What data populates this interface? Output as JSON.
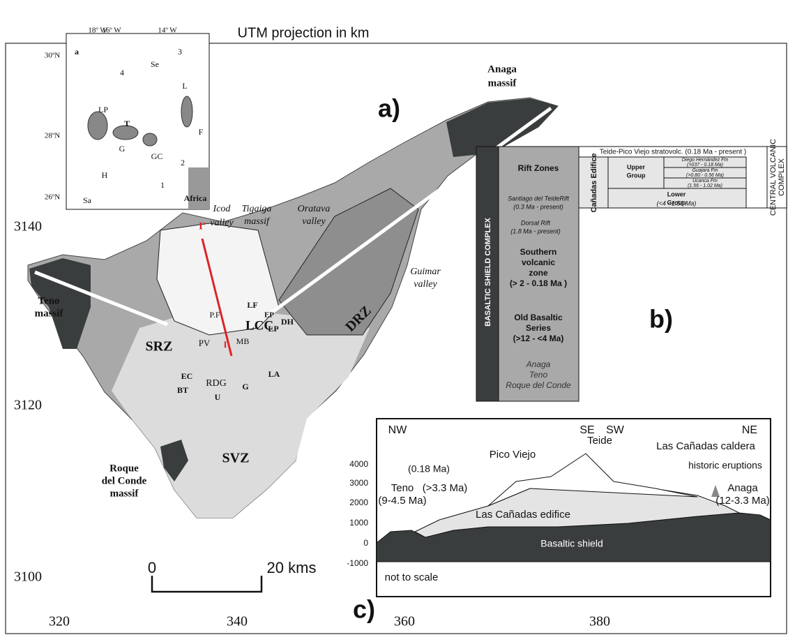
{
  "title": "UTM projection in km",
  "utm": {
    "northing": [
      "3140",
      "3120",
      "3100"
    ],
    "easting": [
      "320",
      "340",
      "360",
      "380"
    ]
  },
  "inset": {
    "panel": "a",
    "longitudes": [
      "18º W",
      "16º W",
      "14º W"
    ],
    "latitudes": [
      "30ºN",
      "28ºN",
      "26ºN"
    ],
    "labels": [
      "Se",
      "3",
      "4",
      "LP",
      "T",
      "L",
      "F",
      "G",
      "GC",
      "H",
      "2",
      "1",
      "Sa",
      "Africa"
    ]
  },
  "map": {
    "panel_label": "a)",
    "labels": [
      "Anaga",
      "massif",
      "Tigaiga",
      "massif",
      "Oratava",
      "valley",
      "Icod",
      "valley",
      "I'",
      "Guimar",
      "valley",
      "Teno",
      "massif",
      "LF",
      "EP",
      "DH",
      "LP",
      "LCC",
      "P.F",
      "MB",
      "PV",
      "I",
      "SRZ",
      "DRZ",
      "EC",
      "BT",
      "RDG",
      "U",
      "G",
      "LA",
      "SVZ",
      "Roque",
      "del Conde",
      "massif"
    ],
    "scale_bar": {
      "start": "0",
      "end": "20 kms"
    }
  },
  "column": {
    "panel_label": "b)",
    "shield": "BASALTIC SHIELD COMPLEX",
    "rift_zones": "Rift Zones",
    "santiago": "Santiago del TeideRift",
    "santiago_age": "(0.3 Ma - present)",
    "dorsal": "Dorsal Rift",
    "dorsal_age": "(1.8 Ma - present)",
    "svz": [
      "Southern",
      "volcanic",
      "zone"
    ],
    "svz_age": "(> 2 - 0.18 Ma )",
    "obs": [
      "Old Basaltic",
      "Series"
    ],
    "obs_age": "(>12 - <4 Ma)",
    "massifs": [
      "Anaga",
      "Teno",
      "Roque del Conde"
    ],
    "teide": "Teide-Pico Viejo stratovolc. (0.18 Ma - present )",
    "canadas": "Cañadas Edifice",
    "upper": [
      "Upper",
      "Group"
    ],
    "formations": [
      [
        "Diego Hernández Fm",
        "(>037 - 0.18 Ma)"
      ],
      [
        "Guajara Fm",
        "(>0.80 - 0.56 Ma)"
      ],
      [
        "Ucanca Fm",
        "(1.56 - 1.02 Ma)"
      ]
    ],
    "lower": [
      "Lower",
      "Group"
    ],
    "lower_age": "(<4 - 1.56 Ma)",
    "central": [
      "CENTRAL VOLCANIC",
      "COMPLEX"
    ]
  },
  "section": {
    "panel_label": "c)",
    "directions": [
      "NW",
      "SE",
      "SW",
      "NE"
    ],
    "elevations": [
      "4000",
      "3000",
      "2000",
      "1000",
      "0",
      "-1000"
    ],
    "labels": [
      "Las Cañadas caldera",
      "Teide",
      "Pico Viejo",
      "historic eruptions",
      "(0.18 Ma)",
      "Teno",
      "(9-4.5 Ma)",
      "(>3.3 Ma)",
      "Anaga",
      "(12-3.3 Ma)",
      "Las Cañadas edifice",
      "Basaltic shield",
      "not to scale"
    ]
  }
}
